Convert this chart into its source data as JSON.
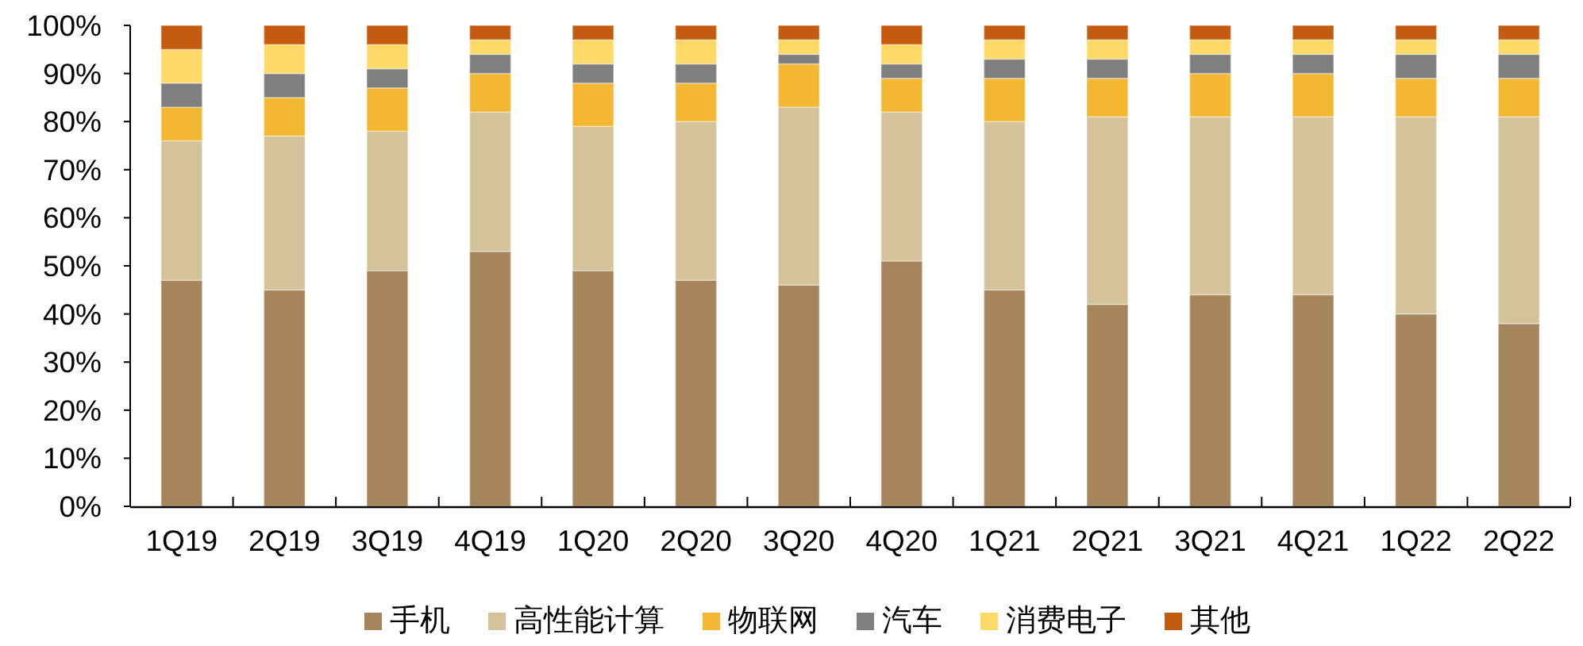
{
  "chart_data": {
    "type": "bar",
    "stacked": true,
    "categories": [
      "1Q19",
      "2Q19",
      "3Q19",
      "4Q19",
      "1Q20",
      "2Q20",
      "3Q20",
      "4Q20",
      "1Q21",
      "2Q21",
      "3Q21",
      "4Q21",
      "1Q22",
      "2Q22"
    ],
    "series": [
      {
        "name": "手机",
        "color": "#a6855c",
        "values": [
          47,
          45,
          49,
          53,
          49,
          47,
          46,
          51,
          45,
          42,
          44,
          44,
          40,
          38
        ]
      },
      {
        "name": "高性能计算",
        "color": "#d4c39a",
        "values": [
          29,
          32,
          29,
          29,
          30,
          33,
          37,
          31,
          35,
          39,
          37,
          37,
          41,
          43
        ]
      },
      {
        "name": "物联网",
        "color": "#f4b731",
        "values": [
          7,
          8,
          9,
          8,
          9,
          8,
          9,
          7,
          9,
          8,
          9,
          9,
          8,
          8
        ]
      },
      {
        "name": "汽车",
        "color": "#7f7f7f",
        "values": [
          5,
          5,
          4,
          4,
          4,
          4,
          2,
          3,
          4,
          4,
          4,
          4,
          5,
          5
        ]
      },
      {
        "name": "消费电子",
        "color": "#ffd966",
        "values": [
          7,
          6,
          5,
          3,
          5,
          5,
          3,
          4,
          4,
          4,
          3,
          3,
          3,
          3
        ]
      },
      {
        "name": "其他",
        "color": "#c55a11",
        "values": [
          5,
          4,
          4,
          3,
          3,
          3,
          3,
          4,
          3,
          3,
          3,
          3,
          3,
          3
        ]
      }
    ],
    "ylim": [
      0,
      100
    ],
    "yticks": [
      {
        "value": 0,
        "label": "0%"
      },
      {
        "value": 10,
        "label": "10%"
      },
      {
        "value": 20,
        "label": "20%"
      },
      {
        "value": 30,
        "label": "30%"
      },
      {
        "value": 40,
        "label": "40%"
      },
      {
        "value": 50,
        "label": "50%"
      },
      {
        "value": 60,
        "label": "60%"
      },
      {
        "value": 70,
        "label": "70%"
      },
      {
        "value": 80,
        "label": "80%"
      },
      {
        "value": 90,
        "label": "90%"
      },
      {
        "value": 100,
        "label": "100%"
      }
    ],
    "legend": "bottom"
  }
}
